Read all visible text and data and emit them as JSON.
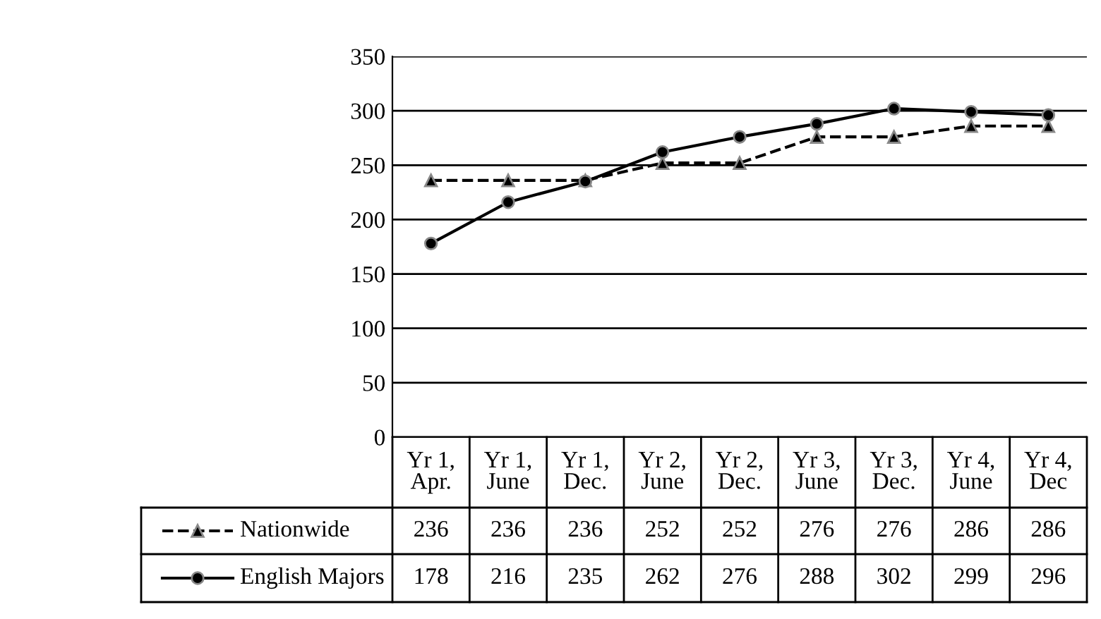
{
  "chart_data": {
    "type": "line",
    "categories": [
      "Yr 1, Apr.",
      "Yr 1, June",
      "Yr 1, Dec.",
      "Yr 2, June",
      "Yr 2, Dec.",
      "Yr 3, June",
      "Yr 3, Dec.",
      "Yr 4, June",
      "Yr 4, Dec"
    ],
    "series": [
      {
        "name": "Nationwide",
        "color": "#000000",
        "marker": "triangle",
        "line_style": "dashed",
        "values": [
          236,
          236,
          236,
          252,
          252,
          276,
          276,
          286,
          286
        ]
      },
      {
        "name": "English Majors",
        "color": "#000000",
        "marker": "circle",
        "line_style": "solid",
        "values": [
          178,
          216,
          235,
          262,
          276,
          288,
          302,
          299,
          296
        ]
      }
    ],
    "ylim": [
      0,
      350
    ],
    "yticks": [
      0,
      50,
      100,
      150,
      200,
      250,
      300,
      350
    ],
    "grid": "y",
    "legend": "bottom",
    "data_labels": true
  }
}
